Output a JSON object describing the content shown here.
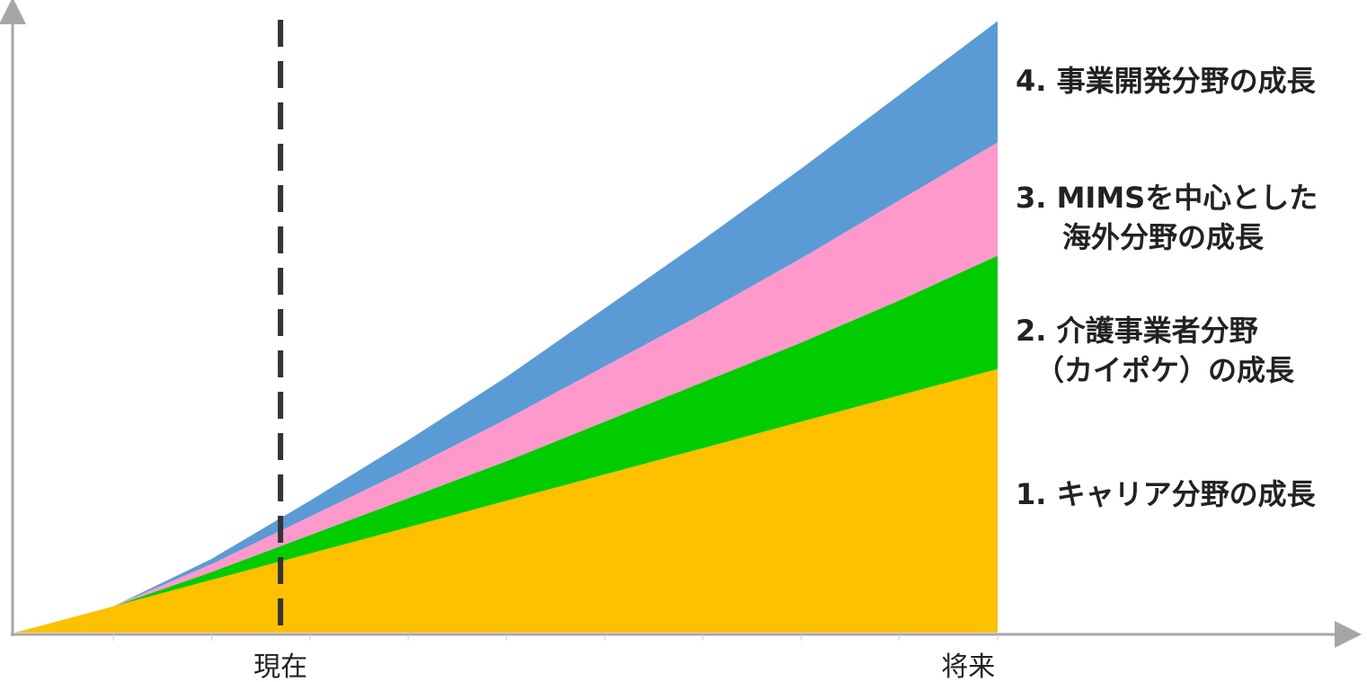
{
  "chart_data": {
    "type": "area",
    "stacked": true,
    "x": [
      0,
      1,
      2,
      3,
      4,
      5,
      6,
      7,
      8,
      9,
      10
    ],
    "x_tick_labels": [
      {
        "x": 2.7,
        "label": "現在"
      },
      {
        "x": 9.7,
        "label": "将来"
      }
    ],
    "marker_line": {
      "x": 2.7,
      "style": "dashed",
      "color": "#333333"
    },
    "series": [
      {
        "name": "1. キャリア分野の成長",
        "color": "#FFC000",
        "values": [
          0,
          1.0,
          2.0,
          3.0,
          4.0,
          5.0,
          6.0,
          7.0,
          8.0,
          9.0,
          10.0
        ]
      },
      {
        "name": "2. 介護事業者分野（カイポケ）の成長",
        "color": "#00CC00",
        "values": [
          0,
          0,
          0.3,
          0.7,
          1.1,
          1.5,
          2.0,
          2.5,
          3.0,
          3.6,
          4.3
        ]
      },
      {
        "name": "3. MIMSを中心とした海外分野の成長",
        "color": "#FF99CC",
        "values": [
          0,
          0,
          0.3,
          0.7,
          1.1,
          1.6,
          2.1,
          2.6,
          3.2,
          3.8,
          4.3
        ]
      },
      {
        "name": "4. 事業開発分野の成長",
        "color": "#5B9BD5",
        "values": [
          0,
          0,
          0.2,
          0.6,
          1.1,
          1.6,
          2.2,
          2.8,
          3.4,
          4.0,
          4.6
        ]
      }
    ],
    "legend_lines": [
      [
        "4. 事業開発分野の成長"
      ],
      [
        "3. MIMSを中心とした",
        "海外分野の成長"
      ],
      [
        "2. 介護事業者分野",
        "（カイポケ）の成長"
      ],
      [
        "1. キャリア分野の成長"
      ]
    ],
    "legend_placement": "right",
    "grid": false,
    "axis_color": "#A6A6A6",
    "ylim": [
      0,
      24
    ]
  }
}
